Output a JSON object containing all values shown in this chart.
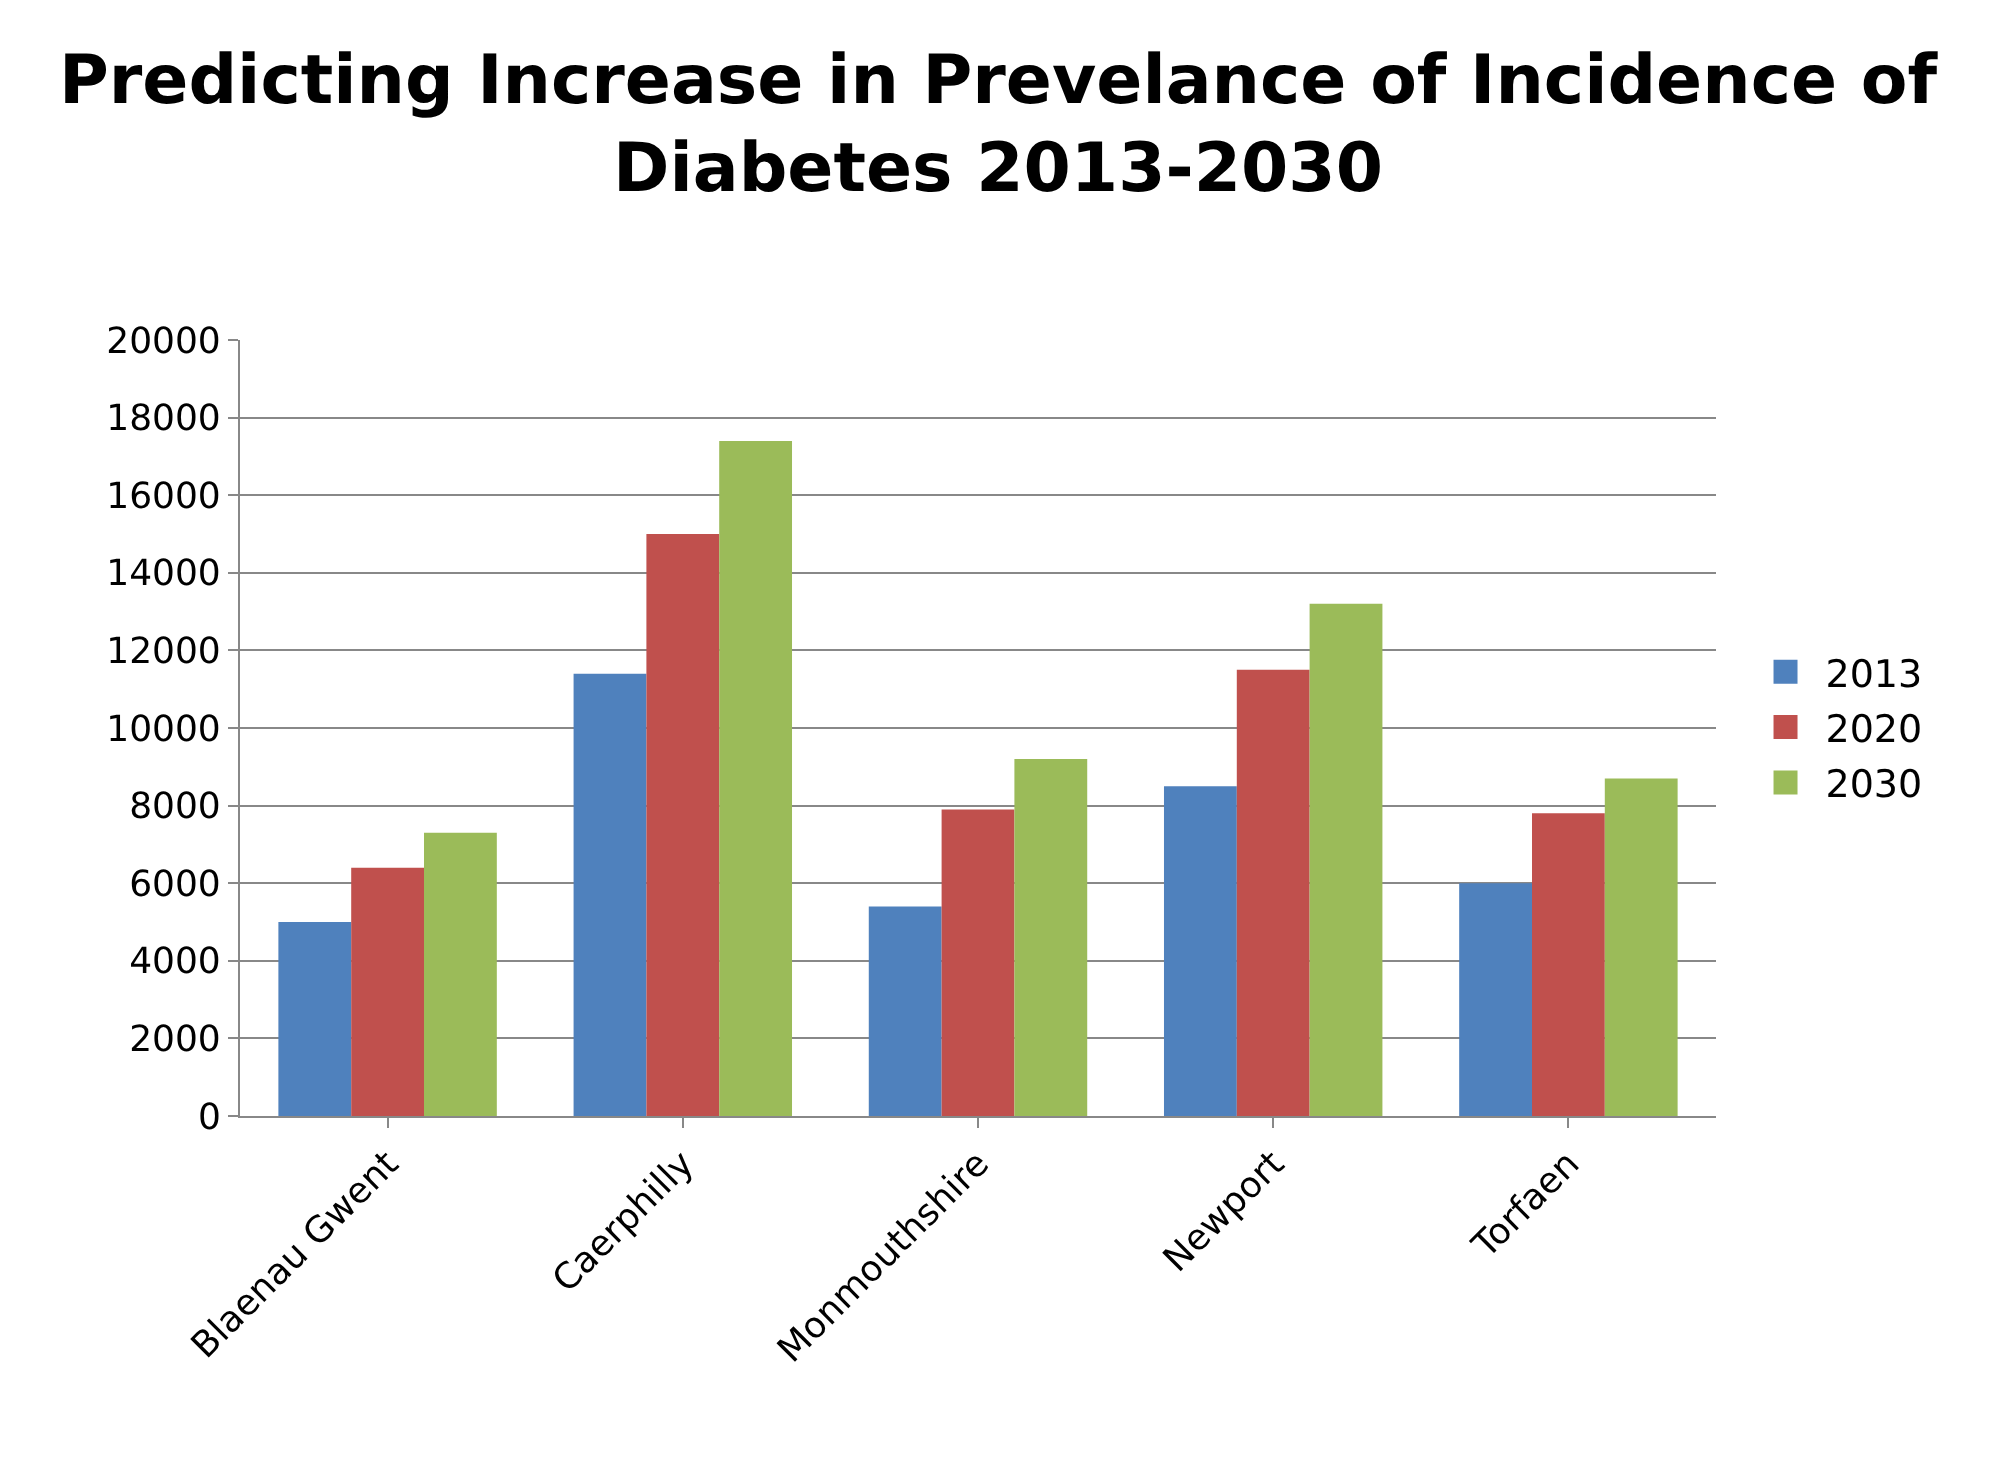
{
  "chart_data": {
    "type": "bar",
    "title": "Predicting Increase in Prevelance of Incidence of Diabetes 2013-2030",
    "categories": [
      "Blaenau Gwent",
      "Caerphilly",
      "Monmouthshire",
      "Newport",
      "Torfaen"
    ],
    "series": [
      {
        "name": "2013",
        "color": "#4f81bd",
        "values": [
          5000,
          11400,
          5400,
          8500,
          6000
        ]
      },
      {
        "name": "2020",
        "color": "#c0504d",
        "values": [
          6400,
          15000,
          7900,
          11500,
          7800
        ]
      },
      {
        "name": "2030",
        "color": "#9bbb59",
        "values": [
          7300,
          17400,
          9200,
          13200,
          8700
        ]
      }
    ],
    "ylim": [
      0,
      20000
    ],
    "yticks": [
      0,
      2000,
      4000,
      6000,
      8000,
      10000,
      12000,
      14000,
      16000,
      18000,
      20000
    ],
    "grid": "y",
    "legend": "right"
  }
}
